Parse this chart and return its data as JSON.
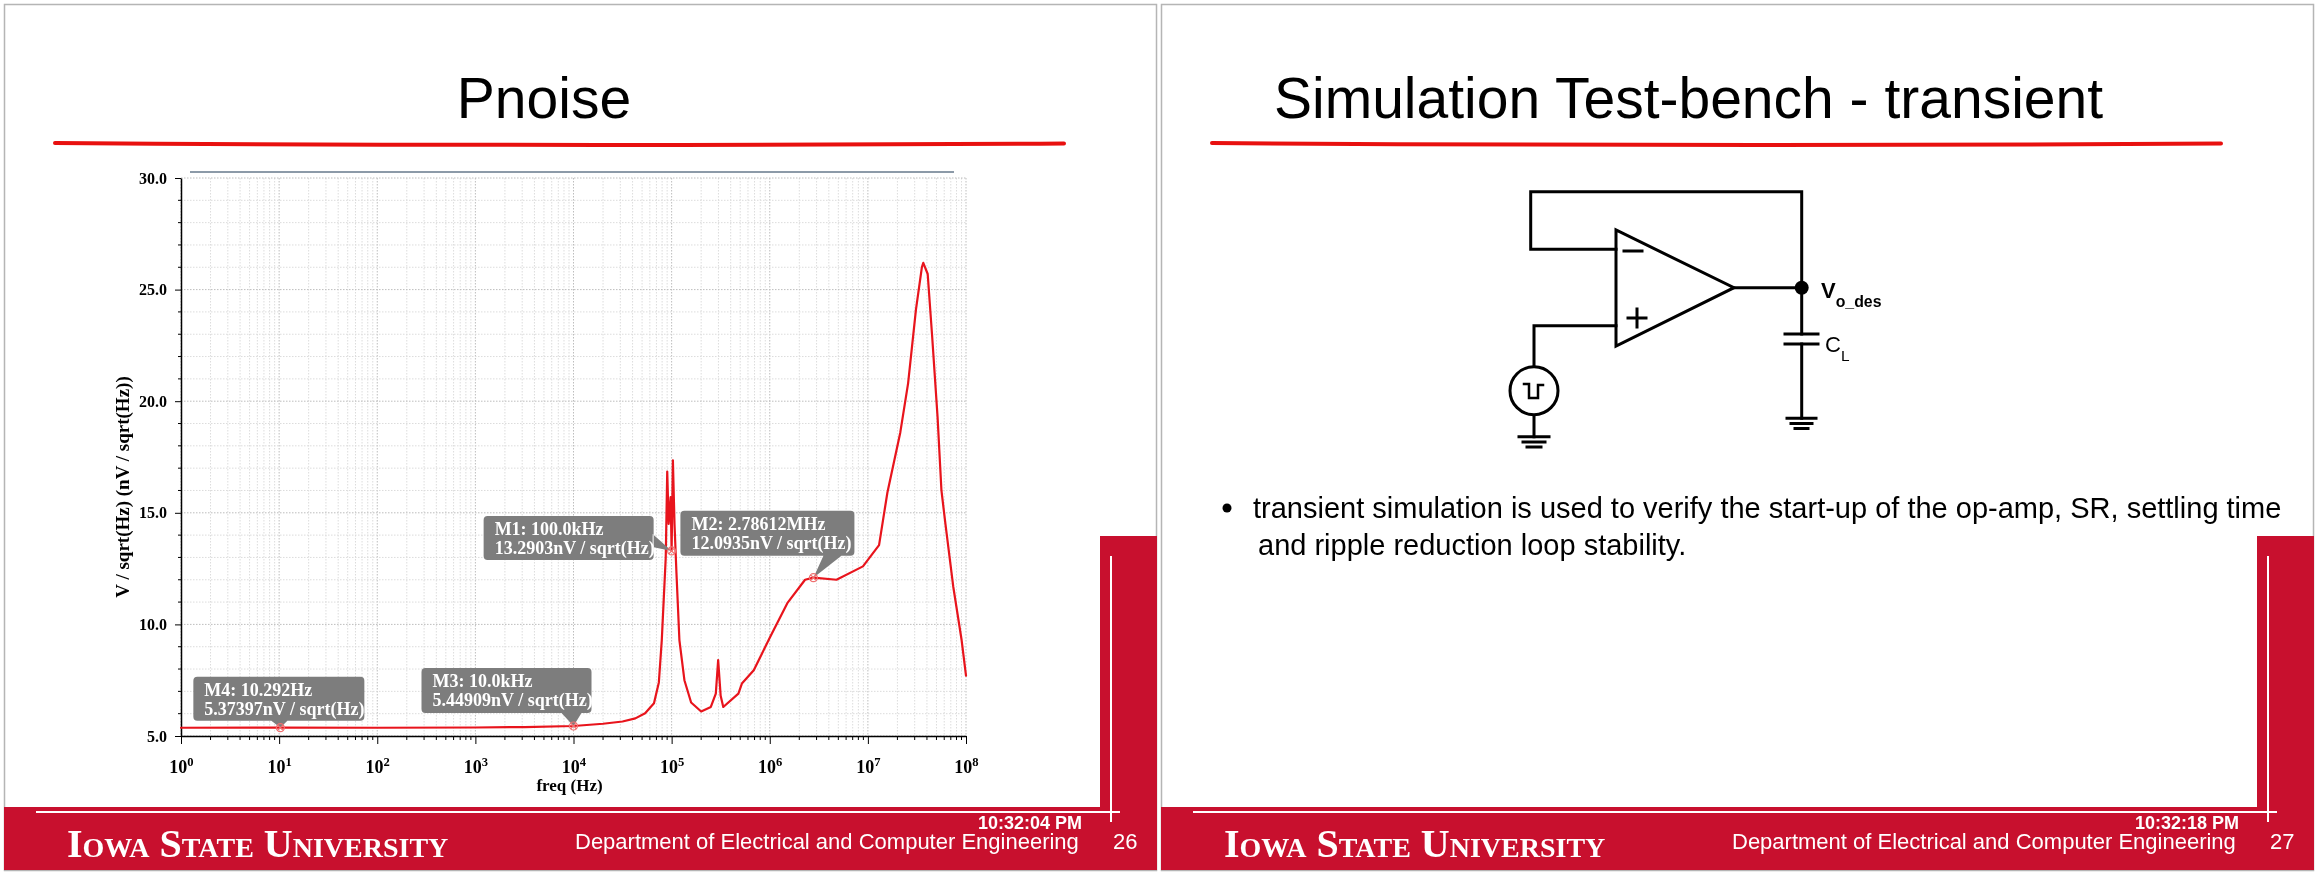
{
  "chart_data": [
    {
      "type": "line",
      "title": "Pnoise",
      "xlabel": "freq (Hz)",
      "ylabel": "V / sqrt(Hz) (nV / sqrt(Hz))",
      "log": "x",
      "x": [
        1,
        10.292,
        100,
        1000,
        3160,
        10000,
        20000,
        31600,
        42700,
        53700,
        66100,
        74100,
        79400,
        87100,
        90200,
        93300,
        97700,
        100000,
        103000,
        107000,
        112000,
        120000,
        135000,
        158000,
        200000,
        251000,
        282000,
        298000,
        316000,
        336000,
        479000,
        520000,
        687000,
        1000000,
        1510000,
        2290000,
        2786120,
        4790000,
        8910000,
        13000000,
        15800000,
        21400000,
        25700000,
        30900000,
        35500000,
        36700000,
        40700000,
        45200000,
        51300000,
        56200000,
        61700000,
        74100000,
        90200000,
        100000000
      ],
      "series": [
        {
          "color": "#e8141c",
          "values": [
            5.37,
            5.37397,
            5.37,
            5.38,
            5.4,
            5.44909,
            5.55,
            5.65,
            5.79,
            6.02,
            6.47,
            7.4,
            9.3,
            13.0,
            16.85,
            14.5,
            15.7,
            13.2903,
            17.35,
            14.5,
            12.3,
            9.3,
            7.5,
            6.5,
            6.1,
            6.3,
            6.9,
            8.4,
            6.8,
            6.3,
            6.9,
            7.35,
            7.95,
            9.4,
            10.95,
            12.0,
            12.0935,
            12.0,
            12.6,
            13.55,
            15.9,
            18.6,
            20.8,
            24.1,
            26.0,
            26.2,
            25.7,
            22.9,
            19.3,
            16.0,
            14.5,
            11.7,
            9.3,
            7.7
          ]
        }
      ],
      "xlim": [
        1,
        100000000
      ],
      "ylim": [
        5,
        30
      ],
      "xticks": [
        {
          "value": 1,
          "label": "10$^{0}$"
        },
        {
          "value": 10,
          "label": "10$^{1}$"
        },
        {
          "value": 100,
          "label": "10$^{2}$"
        },
        {
          "value": 1000,
          "label": "10$^{3}$"
        },
        {
          "value": 10000,
          "label": "10$^{4}$"
        },
        {
          "value": 100000,
          "label": "10$^{5}$"
        },
        {
          "value": 1000000,
          "label": "10$^{6}$"
        },
        {
          "value": 10000000,
          "label": "10$^{7}$"
        },
        {
          "value": 100000000,
          "label": "10$^{8}$"
        }
      ],
      "yticks": [
        {
          "value": 5,
          "label": "5.0"
        },
        {
          "value": 10,
          "label": "10.0"
        },
        {
          "value": 15,
          "label": "15.0"
        },
        {
          "value": 20,
          "label": "20.0"
        },
        {
          "value": 25,
          "label": "25.0"
        },
        {
          "value": 30,
          "label": "30.0"
        }
      ],
      "grid": true,
      "annotations": [
        {
          "text": "M1: 100.0kHz\n13.2903nV / sqrt(Hz)",
          "x": 100000,
          "y": 13.2903
        },
        {
          "text": "M2: 2.78612MHz\n12.0935nV / sqrt(Hz)",
          "x": 2786120,
          "y": 12.0935
        },
        {
          "text": "M3: 10.0kHz\n5.44909nV / sqrt(Hz)",
          "x": 10000,
          "y": 5.44909
        },
        {
          "text": "M4: 10.292Hz\n5.37397nV / sqrt(Hz)",
          "x": 10.292,
          "y": 5.37397
        },
        "Iowa State University",
        "Department of Electrical and Computer Engineering",
        "10:32:04 PM",
        "26"
      ]
    },
    {
      "type": "other",
      "title": "Simulation Test-bench - transient",
      "annotations": [
        "V$_{o_des}$",
        "C$_{L}$",
        "transient simulation is used to verify the start-up of the op-amp, SR, settling time and ripple reduction loop stability.",
        "Iowa State University",
        "Department of Electrical and Computer Engineering",
        "10:32:18 PM",
        "27"
      ]
    }
  ]
}
